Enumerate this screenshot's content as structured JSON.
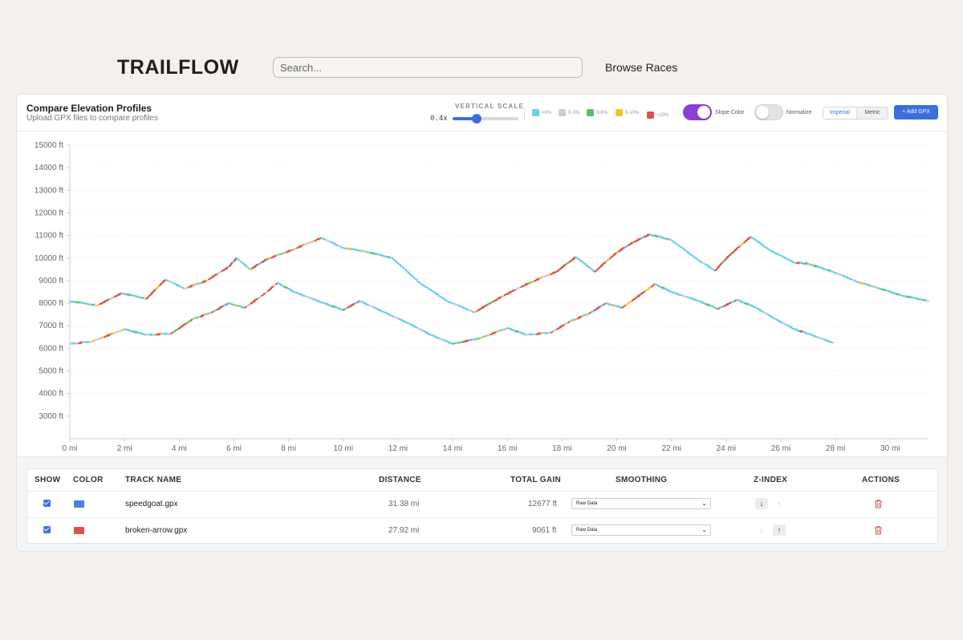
{
  "header": {
    "logo": "TRAILFLOW",
    "search_placeholder": "Search...",
    "browse_label": "Browse Races"
  },
  "panel": {
    "title": "Compare Elevation Profiles",
    "subtitle": "Upload GPX files to compare profiles",
    "vertical_scale_label": "VERTICAL SCALE",
    "vertical_scale_value": "0.4x",
    "vertical_scale_fraction": 0.4,
    "slope_legend": [
      {
        "label": "<0%",
        "color": "#6ccfe6"
      },
      {
        "label": "0-3%",
        "color": "#c9ccd6"
      },
      {
        "label": "3-6%",
        "color": "#5cc06a"
      },
      {
        "label": "6-10%",
        "color": "#f1c232"
      },
      {
        "label": ">10%",
        "color": "#d9534f"
      }
    ],
    "slope_color_label": "Slope Color",
    "slope_color_on": true,
    "normalize_label": "Normalize",
    "normalize_on": false,
    "units": {
      "imperial": "Imperial",
      "metric": "Metric",
      "selected": "imperial"
    },
    "add_gpx_label": "+ Add GPX"
  },
  "chart_data": {
    "type": "line",
    "title": "",
    "xlabel": "",
    "ylabel": "",
    "xlim": [
      0,
      31.4
    ],
    "ylim": [
      2000,
      15000
    ],
    "y_ticks": [
      "3000 ft",
      "4000 ft",
      "5000 ft",
      "6000 ft",
      "7000 ft",
      "8000 ft",
      "9000 ft",
      "10000 ft",
      "11000 ft",
      "12000 ft",
      "13000 ft",
      "14000 ft",
      "15000 ft"
    ],
    "y_tick_values": [
      3000,
      4000,
      5000,
      6000,
      7000,
      8000,
      9000,
      10000,
      11000,
      12000,
      13000,
      14000,
      15000
    ],
    "x_ticks": [
      "0 mi",
      "2 mi",
      "4 mi",
      "6 mi",
      "8 mi",
      "10 mi",
      "12 mi",
      "14 mi",
      "16 mi",
      "18 mi",
      "20 mi",
      "22 mi",
      "24 mi",
      "26 mi",
      "28 mi",
      "30 mi"
    ],
    "x_tick_values": [
      0,
      2,
      4,
      6,
      8,
      10,
      12,
      14,
      16,
      18,
      20,
      22,
      24,
      26,
      28,
      30
    ],
    "grid": true,
    "series": [
      {
        "name": "speedgoat.gpx",
        "x": [
          0,
          1,
          1.9,
          2.8,
          3.5,
          4.2,
          5,
          5.8,
          6.1,
          6.6,
          7.2,
          8.1,
          9.2,
          10,
          10.8,
          11.8,
          12.8,
          13.8,
          14.8,
          15.8,
          16.8,
          17.8,
          18.5,
          19.2,
          20,
          20.6,
          21.2,
          22,
          23,
          23.6,
          24.1,
          24.9,
          25.6,
          26.5,
          27,
          27.9,
          28.8,
          29.5,
          30.4,
          31.4
        ],
        "values": [
          8100,
          7900,
          8450,
          8200,
          9050,
          8650,
          9000,
          9600,
          10000,
          9500,
          9950,
          10350,
          10900,
          10450,
          10300,
          10000,
          8900,
          8100,
          7600,
          8300,
          8900,
          9400,
          10050,
          9400,
          10250,
          10700,
          11050,
          10800,
          9900,
          9450,
          10100,
          10950,
          10350,
          9800,
          9750,
          9400,
          8950,
          8700,
          8350,
          8100
        ]
      },
      {
        "name": "broken-arrow.gpx",
        "x": [
          0,
          0.8,
          2,
          2.8,
          3.7,
          4.5,
          5.2,
          5.8,
          6.4,
          7.1,
          7.6,
          8.2,
          9.3,
          10,
          10.6,
          11.5,
          12.4,
          13.2,
          14,
          15,
          16,
          16.7,
          17.6,
          18.3,
          19,
          19.6,
          20.2,
          21.4,
          22,
          23,
          23.7,
          24.4,
          25.1,
          25.8,
          26.5,
          27,
          27.9
        ],
        "values": [
          6200,
          6300,
          6850,
          6600,
          6650,
          7300,
          7600,
          8000,
          7800,
          8400,
          8900,
          8500,
          8000,
          7700,
          8100,
          7600,
          7100,
          6600,
          6200,
          6450,
          6900,
          6600,
          6700,
          7200,
          7550,
          8000,
          7800,
          8850,
          8500,
          8100,
          7750,
          8150,
          7800,
          7300,
          6850,
          6650,
          6250
        ]
      }
    ]
  },
  "table": {
    "headers": {
      "show": "SHOW",
      "color": "COLOR",
      "track_name": "TRACK NAME",
      "distance": "DISTANCE",
      "total_gain": "TOTAL GAIN",
      "smoothing": "SMOOTHING",
      "z_index": "Z-INDEX",
      "actions": "ACTIONS"
    },
    "rows": [
      {
        "name": "speedgoat.gpx",
        "color": "#4f7fe0",
        "distance": "31.38 mi",
        "gain": "12677 ft",
        "smoothing": "Raw Data",
        "shown": true
      },
      {
        "name": "broken-arrow.gpx",
        "color": "#d9534f",
        "distance": "27.92 mi",
        "gain": "9061 ft",
        "smoothing": "Raw Data",
        "shown": true
      }
    ]
  },
  "colors": {
    "accent": "#3b6fe0",
    "toggle_on": "#8a3fd6",
    "trash": "#d9534f"
  }
}
